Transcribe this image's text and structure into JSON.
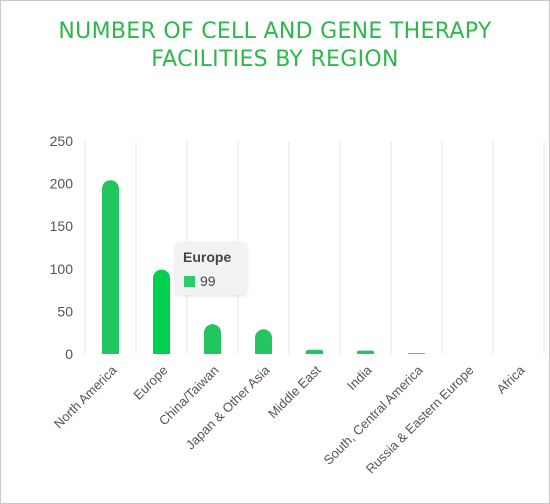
{
  "chart_data": {
    "type": "bar",
    "title_line1": "NUMBER OF CELL AND GENE THERAPY",
    "title_line2": "FACILITIES BY REGION",
    "categories": [
      "North America",
      "Europe",
      "China/Taiwan",
      "Japan & Other Asia",
      "Middle East",
      "India",
      "South, Central America",
      "Russia & Eastern Europe",
      "Africa"
    ],
    "values": [
      204,
      99,
      35,
      29,
      5,
      4,
      1,
      0,
      0
    ],
    "ylim": [
      0,
      250
    ],
    "yticks": [
      0,
      50,
      100,
      150,
      200,
      250
    ],
    "ytick_labels": [
      "0",
      "50",
      "100",
      "150",
      "200",
      "250"
    ],
    "grid": true,
    "colors": {
      "title": "#2db84b",
      "bar": "#22c55e",
      "bar_highlight": "#00d14f",
      "grid": "#e6e6e6"
    },
    "tooltip": {
      "category": "Europe",
      "value": "99"
    }
  }
}
